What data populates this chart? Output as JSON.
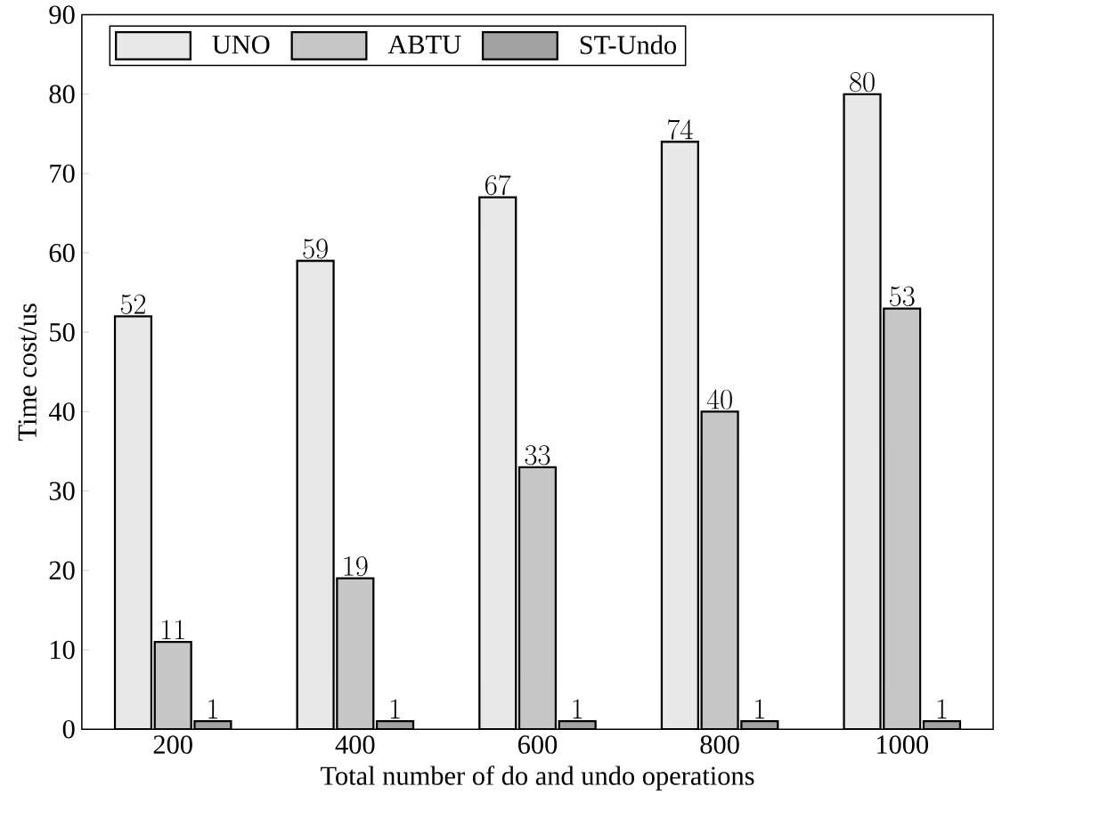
{
  "chart_data": {
    "type": "bar",
    "xlabel": "Total number of do and undo operations",
    "ylabel": "Time cost/us",
    "categories": [
      "200",
      "400",
      "600",
      "800",
      "1000"
    ],
    "series": [
      {
        "name": "UNO",
        "color": "#e8e8e8",
        "values": [
          52,
          59,
          67,
          74,
          80
        ]
      },
      {
        "name": "ABTU",
        "color": "#c6c6c6",
        "values": [
          11,
          19,
          33,
          40,
          53
        ]
      },
      {
        "name": "ST-Undo",
        "color": "#a2a2a2",
        "values": [
          1,
          1,
          1,
          1,
          1
        ]
      }
    ],
    "ylim": [
      0,
      90
    ],
    "yticks": [
      0,
      10,
      20,
      30,
      40,
      50,
      60,
      70,
      80,
      90
    ],
    "data_labels": true,
    "legend": "top left",
    "grid": false
  }
}
